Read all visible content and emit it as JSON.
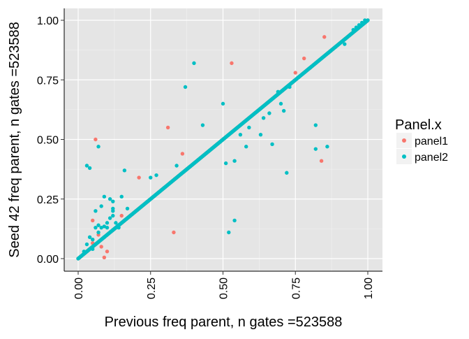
{
  "chart_data": {
    "type": "scatter",
    "xlabel": "Previous freq parent, n gates =523588",
    "ylabel": "Seed 42 freq parent, n gates =523588",
    "xlim": [
      0,
      1
    ],
    "ylim": [
      0,
      1
    ],
    "x_ticks": [
      0,
      0.25,
      0.5,
      0.75,
      1
    ],
    "x_tick_labels": [
      "0.00",
      "0.25",
      "0.50",
      "0.75",
      "1.00"
    ],
    "y_ticks": [
      0,
      0.25,
      0.5,
      0.75,
      1
    ],
    "y_tick_labels": [
      "0.00",
      "0.25",
      "0.50",
      "0.75",
      "1.00"
    ],
    "grid": true,
    "legend": {
      "title": "Panel.x",
      "position": "right"
    },
    "series": [
      {
        "name": "panel1",
        "color": "#F8766D",
        "diagonal": {
          "from": 0,
          "to": 1
        },
        "outliers": [
          [
            0.06,
            0.5
          ],
          [
            0.31,
            0.55
          ],
          [
            0.53,
            0.82
          ],
          [
            0.33,
            0.11
          ],
          [
            0.36,
            0.44
          ],
          [
            0.21,
            0.34
          ],
          [
            0.85,
            0.93
          ],
          [
            0.84,
            0.41
          ],
          [
            0.78,
            0.84
          ],
          [
            0.75,
            0.78
          ],
          [
            0.1,
            0.03
          ],
          [
            0.09,
            0.005
          ],
          [
            0.07,
            0.1
          ],
          [
            0.12,
            0.12
          ],
          [
            0.05,
            0.065
          ],
          [
            0.03,
            0.03
          ],
          [
            0.08,
            0.05
          ],
          [
            0.15,
            0.18
          ],
          [
            0.05,
            0.16
          ],
          [
            0.16,
            0.16
          ]
        ]
      },
      {
        "name": "panel2",
        "color": "#00BFC4",
        "diagonal": {
          "from": 0,
          "to": 1
        },
        "outliers": [
          [
            0.03,
            0.39
          ],
          [
            0.04,
            0.38
          ],
          [
            0.07,
            0.47
          ],
          [
            0.09,
            0.26
          ],
          [
            0.11,
            0.25
          ],
          [
            0.12,
            0.24
          ],
          [
            0.12,
            0.21
          ],
          [
            0.12,
            0.2
          ],
          [
            0.12,
            0.18
          ],
          [
            0.11,
            0.17
          ],
          [
            0.1,
            0.15
          ],
          [
            0.08,
            0.22
          ],
          [
            0.06,
            0.2
          ],
          [
            0.06,
            0.13
          ],
          [
            0.07,
            0.14
          ],
          [
            0.08,
            0.13
          ],
          [
            0.09,
            0.135
          ],
          [
            0.1,
            0.13
          ],
          [
            0.15,
            0.26
          ],
          [
            0.16,
            0.37
          ],
          [
            0.17,
            0.21
          ],
          [
            0.25,
            0.34
          ],
          [
            0.27,
            0.35
          ],
          [
            0.34,
            0.39
          ],
          [
            0.37,
            0.72
          ],
          [
            0.4,
            0.82
          ],
          [
            0.43,
            0.56
          ],
          [
            0.5,
            0.65
          ],
          [
            0.51,
            0.4
          ],
          [
            0.52,
            0.11
          ],
          [
            0.54,
            0.16
          ],
          [
            0.54,
            0.41
          ],
          [
            0.56,
            0.52
          ],
          [
            0.58,
            0.47
          ],
          [
            0.59,
            0.55
          ],
          [
            0.63,
            0.52
          ],
          [
            0.64,
            0.59
          ],
          [
            0.66,
            0.61
          ],
          [
            0.67,
            0.48
          ],
          [
            0.69,
            0.7
          ],
          [
            0.7,
            0.65
          ],
          [
            0.71,
            0.62
          ],
          [
            0.72,
            0.36
          ],
          [
            0.73,
            0.72
          ],
          [
            0.76,
            0.76
          ],
          [
            0.8,
            0.8
          ],
          [
            0.82,
            0.56
          ],
          [
            0.82,
            0.46
          ],
          [
            0.86,
            0.47
          ],
          [
            0.89,
            0.89
          ],
          [
            0.92,
            0.9
          ],
          [
            0.96,
            0.97
          ],
          [
            0.97,
            0.98
          ],
          [
            0.02,
            0.03
          ],
          [
            0.03,
            0.06
          ],
          [
            0.04,
            0.09
          ],
          [
            0.05,
            0.08
          ],
          [
            0.05,
            0.04
          ],
          [
            0.07,
            0.11
          ],
          [
            0.13,
            0.15
          ],
          [
            0.14,
            0.13
          ],
          [
            0.09,
            0.09
          ],
          [
            0.98,
            0.99
          ],
          [
            0.99,
            1.0
          ],
          [
            0.95,
            0.96
          ]
        ]
      }
    ]
  }
}
